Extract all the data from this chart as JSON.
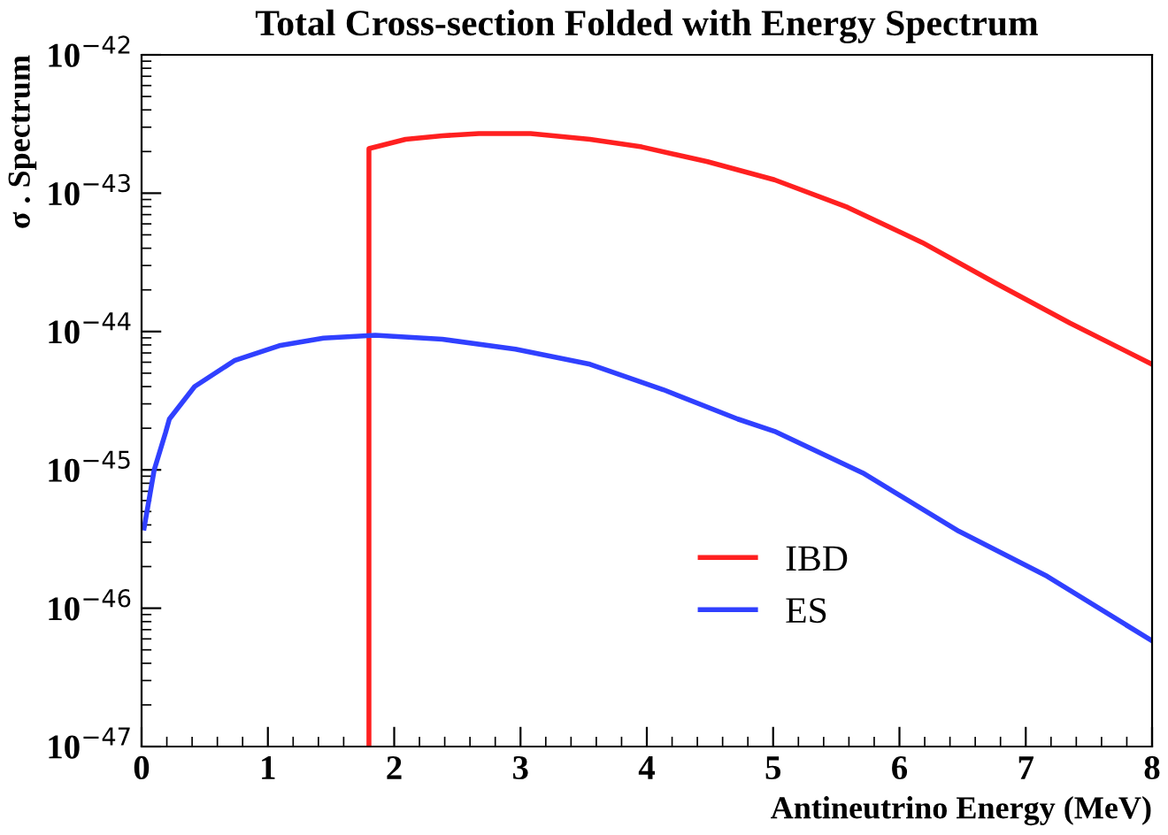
{
  "chart_data": {
    "type": "line",
    "title": "Total Cross-section Folded with Energy Spectrum",
    "xlabel": "Antineutrino Energy (MeV)",
    "ylabel": "σ . Spectrum",
    "series": [
      {
        "name": "IBD",
        "color": "#ff2020",
        "x": [
          1.8,
          1.8,
          2.09,
          2.38,
          2.67,
          3.08,
          3.55,
          3.96,
          4.48,
          5.01,
          5.59,
          6.18,
          6.76,
          7.35,
          8.0
        ],
        "values": [
          1e-47,
          2.1e-43,
          2.45e-43,
          2.6e-43,
          2.7e-43,
          2.7e-43,
          2.45e-43,
          2.16e-43,
          1.69e-43,
          1.25e-43,
          7.9e-44,
          4.4e-44,
          2.24e-44,
          1.15e-44,
          5.8e-45
        ]
      },
      {
        "name": "ES",
        "color": "#3040ff",
        "x": [
          0.02,
          0.1,
          0.19,
          0.22,
          0.42,
          0.74,
          1.09,
          1.44,
          1.85,
          2.38,
          2.96,
          3.55,
          4.13,
          4.72,
          5.01,
          5.71,
          6.47,
          7.17,
          8.0
        ],
        "values": [
          3.8e-46,
          1e-45,
          1.86e-45,
          2.33e-45,
          4e-45,
          6.2e-45,
          7.9e-45,
          8.95e-45,
          9.4e-45,
          8.8e-45,
          7.45e-45,
          5.8e-45,
          3.8e-45,
          2.33e-45,
          1.9e-45,
          9.5e-46,
          3.6e-46,
          1.7e-46,
          5.8e-47
        ]
      }
    ],
    "log": "y",
    "xlim": [
      0,
      8
    ],
    "xticks": [
      0,
      1,
      2,
      3,
      4,
      5,
      6,
      7,
      8
    ],
    "ylim": [
      1e-47,
      1e-42
    ],
    "yticks": [
      {
        "value": 1e-47,
        "label": "10$^{−47}$"
      },
      {
        "value": 1e-46,
        "label": "10$^{−46}$"
      },
      {
        "value": 1e-45,
        "label": "10$^{−45}$"
      },
      {
        "value": 1e-44,
        "label": "10$^{−44}$"
      },
      {
        "value": 1e-43,
        "label": "10$^{−43}$"
      },
      {
        "value": 1e-42,
        "label": "10$^{−42}$"
      }
    ],
    "grid": false,
    "legend": "bottom",
    "marker": "none",
    "line_style": "solid"
  }
}
